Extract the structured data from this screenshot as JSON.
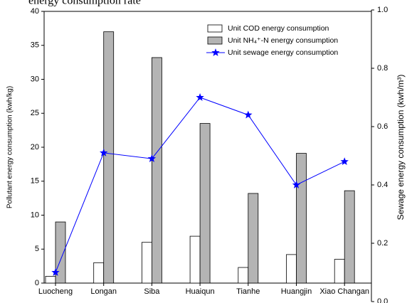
{
  "caption_fragment": "energy consumption rate",
  "chart_data": {
    "type": "bar",
    "categories": [
      "Luocheng",
      "Longan",
      "Siba",
      "Huaiqun",
      "Tianhe",
      "Huangjin",
      "Xiao Changan"
    ],
    "series": [
      {
        "name": "Unit COD energy consumption",
        "color": "#ffffff",
        "values": [
          1.0,
          3.0,
          6.0,
          6.9,
          2.3,
          4.2,
          3.5
        ]
      },
      {
        "name": "Unit NH₄⁺-N energy consumption",
        "color": "#b4b4b4",
        "values": [
          9.0,
          37.0,
          33.2,
          23.5,
          13.2,
          19.1,
          13.6
        ]
      },
      {
        "name": "Unit sewage energy consumption",
        "color": "#0000ff",
        "type": "line",
        "axis": "y2",
        "values": [
          0.1,
          0.51,
          0.49,
          0.7,
          0.64,
          0.4,
          0.48
        ]
      }
    ],
    "ylabel": "Pollutant energy consumption (kwh/kg)",
    "y2label": "Sewage energy consumption (kwh/m³)",
    "ylim": [
      0,
      40
    ],
    "yticks": [
      0,
      5,
      10,
      15,
      20,
      25,
      30,
      35,
      40
    ],
    "y2lim": [
      0,
      1
    ],
    "y2ticks": [
      {
        "value": 0,
        "label": "0.0"
      },
      0.2,
      0.4,
      0.6,
      0.8,
      {
        "value": 1,
        "label": "1.0"
      }
    ],
    "legend": "upper right"
  }
}
